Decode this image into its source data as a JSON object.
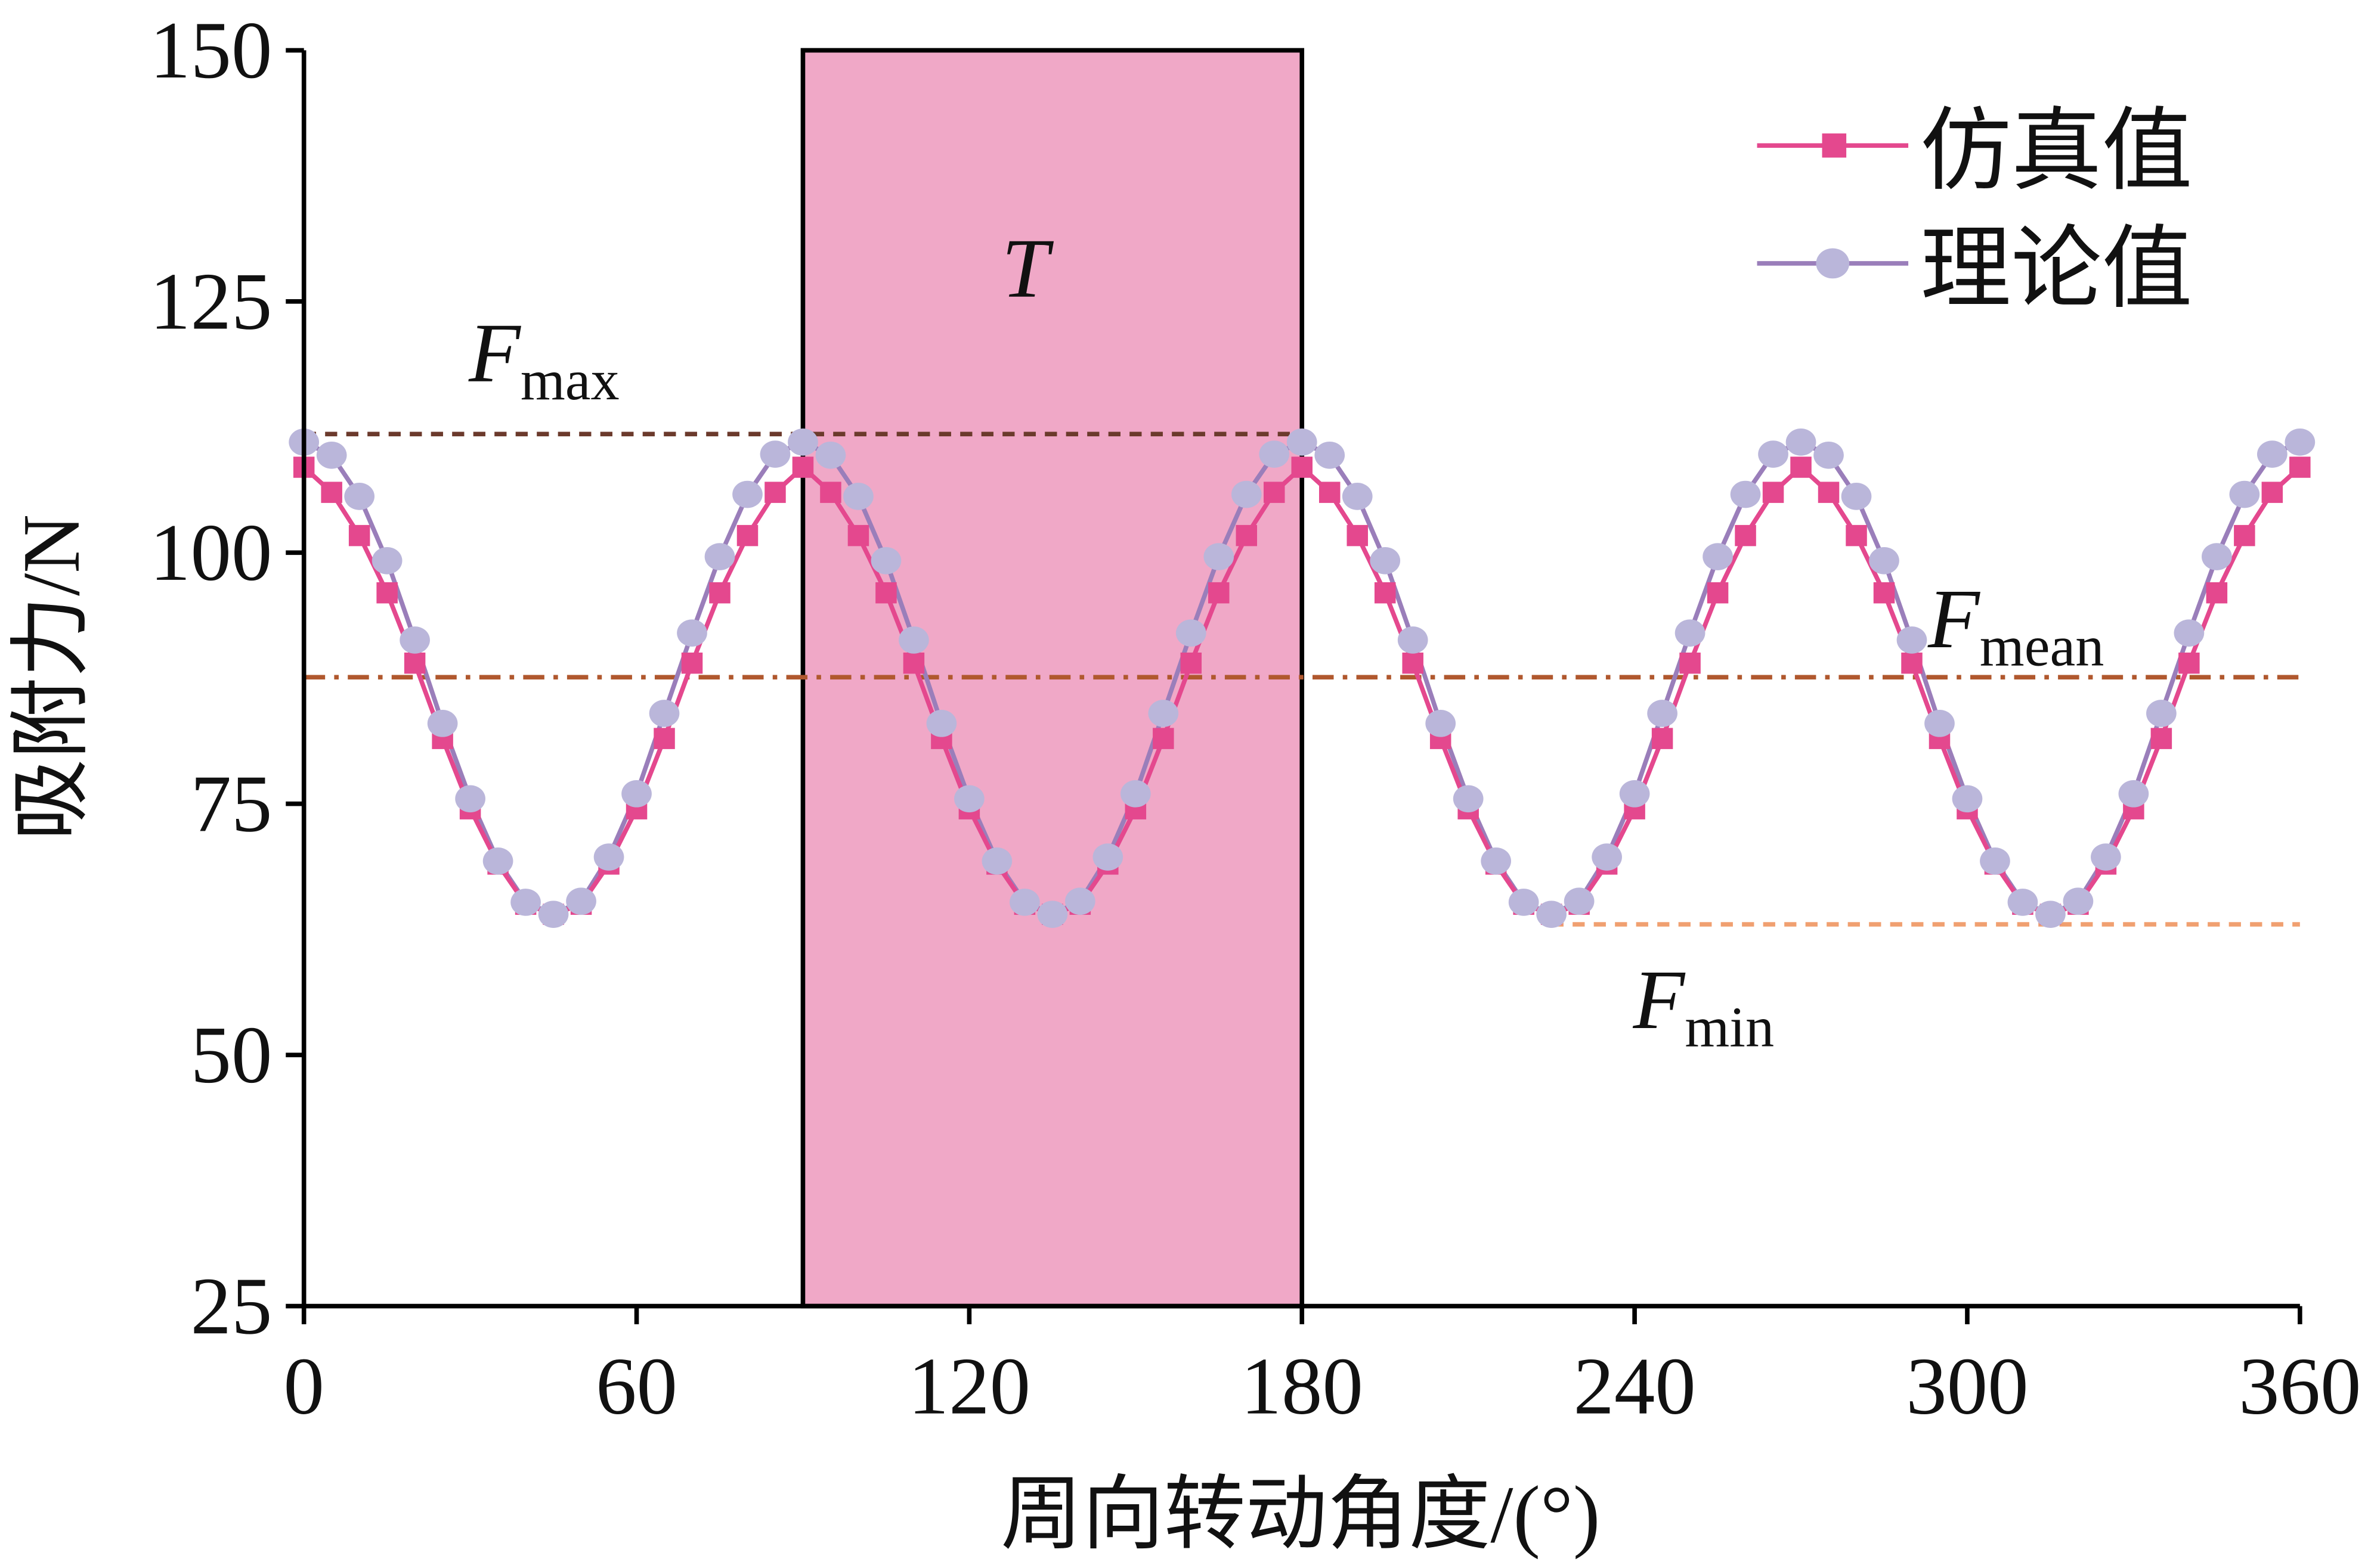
{
  "chart_data": {
    "type": "line",
    "xlabel": "周向转动角度/(°)",
    "ylabel": "吸附力/N",
    "xlim": [
      0,
      360
    ],
    "ylim": [
      25,
      150
    ],
    "xticks": [
      0,
      60,
      120,
      180,
      240,
      300,
      360
    ],
    "yticks": [
      25,
      50,
      75,
      100,
      125,
      150
    ],
    "grid": false,
    "legend_position": "top-right",
    "x": [
      0,
      5,
      10,
      15,
      20,
      25,
      30,
      35,
      40,
      45,
      50,
      55,
      60,
      65,
      70,
      75,
      80,
      85,
      90,
      95,
      100,
      105,
      110,
      115,
      120,
      125,
      130,
      135,
      140,
      145,
      150,
      155,
      160,
      165,
      170,
      175,
      180,
      185,
      190,
      195,
      200,
      205,
      210,
      215,
      220,
      225,
      230,
      235,
      240,
      245,
      250,
      255,
      260,
      265,
      270,
      275,
      280,
      285,
      290,
      295,
      300,
      305,
      310,
      315,
      320,
      325,
      330,
      335,
      340,
      345,
      350,
      355,
      360
    ],
    "series": [
      {
        "name": "仿真值",
        "color": "#E4488E",
        "marker": "square",
        "values": [
          108.5,
          106,
          101.7,
          96,
          89,
          81.5,
          74.5,
          69,
          65,
          64,
          65,
          69,
          74.5,
          81.5,
          89,
          96,
          101.7,
          106,
          108.5,
          106,
          101.7,
          96,
          89,
          81.5,
          74.5,
          69,
          65,
          64,
          65,
          69,
          74.5,
          81.5,
          89,
          96,
          101.7,
          106,
          108.5,
          106,
          101.7,
          96,
          89,
          81.5,
          74.5,
          69,
          65,
          64,
          65,
          69,
          74.5,
          81.5,
          89,
          96,
          101.7,
          106,
          108.5,
          106,
          101.7,
          96,
          89,
          81.5,
          74.5,
          69,
          65,
          64,
          65,
          69,
          74.5,
          81.5,
          89,
          96,
          101.7,
          106,
          108.5
        ]
      },
      {
        "name": "理论值",
        "color": "#9A7EBA",
        "marker_color": "#BAB6DA",
        "marker": "circle",
        "values": [
          111,
          109.7,
          105.6,
          99.2,
          91.3,
          83,
          75.5,
          69.3,
          65.2,
          64,
          65.3,
          69.7,
          76,
          84,
          92,
          99.6,
          105.8,
          109.8,
          111,
          109.7,
          105.6,
          99.2,
          91.3,
          83,
          75.5,
          69.3,
          65.2,
          64,
          65.3,
          69.7,
          76,
          84,
          92,
          99.6,
          105.8,
          109.8,
          111,
          109.7,
          105.6,
          99.2,
          91.3,
          83,
          75.5,
          69.3,
          65.2,
          64,
          65.3,
          69.7,
          76,
          84,
          92,
          99.6,
          105.8,
          109.8,
          111,
          109.7,
          105.6,
          99.2,
          91.3,
          83,
          75.5,
          69.3,
          65.2,
          64,
          65.3,
          69.7,
          76,
          84,
          92,
          99.6,
          105.8,
          109.8,
          111
        ]
      }
    ],
    "period_region": {
      "label": "T",
      "x_range": [
        90,
        180
      ],
      "color": "#F0A8C7"
    },
    "reference_lines": [
      {
        "name": "F",
        "sub": "max",
        "value": 111.8,
        "x_range": [
          0,
          180
        ],
        "style": "dashed",
        "color": "#6B3A2C"
      },
      {
        "name": "F",
        "sub": "mean",
        "value": 87.6,
        "x_range": [
          0,
          360
        ],
        "style": "dashdot",
        "color": "#B0582E"
      },
      {
        "name": "F",
        "sub": "min",
        "value": 63,
        "x_range": [
          225,
          360
        ],
        "style": "dashed",
        "color": "#F0A070"
      }
    ]
  }
}
